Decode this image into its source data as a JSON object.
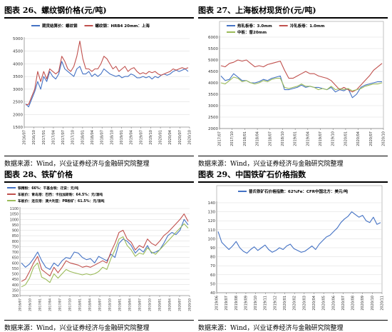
{
  "panels": [
    {
      "title": "图表 26、螺纹钢价格(元/吨)",
      "source": "数据来源：Wind，兴业证券经济与金融研究院整理"
    },
    {
      "title": "图表 27、上海板材现货价(元/吨)",
      "source": "数据来源：Wind，兴业证券经济与金融研究院整理"
    },
    {
      "title": "图表 28、铁矿价格",
      "source": "数据来源：Wind，兴业证券经济与金融研究院整理"
    },
    {
      "title": "图表 29、中国铁矿石价格指数",
      "source": "数据来源：Wind，兴业证券经济与金融研究院整理"
    }
  ],
  "chart_data": [
    {
      "type": "line",
      "title": "图表 26、螺纹钢价格(元/吨)",
      "ylim": [
        1500,
        5000
      ],
      "yticks": [
        "1500",
        "2000",
        "2500",
        "3000",
        "3500",
        "4000",
        "4500",
        "5000"
      ],
      "xticks": [
        "2016/07",
        "2016/10",
        "2017/01",
        "2017/04",
        "2017/07",
        "2017/10",
        "2018/01",
        "2018/04",
        "2018/07",
        "2018/10",
        "2019/01",
        "2019/04",
        "2019/07",
        "2019/10",
        "2020/01",
        "2020/04",
        "2020/07",
        "2020/10"
      ],
      "legend": [
        "期货结算价：螺纹钢",
        "螺纹钢：HRB4 20mm：上海"
      ],
      "colors": [
        "#4472C4",
        "#C0504D"
      ],
      "series": [
        {
          "name": "期货结算价：螺纹钢",
          "values": [
            2420,
            2300,
            2600,
            2900,
            3300,
            3000,
            3500,
            3300,
            3700,
            3500,
            3400,
            3600,
            4100,
            3800,
            3700,
            3600,
            3500,
            3800,
            3900,
            3600,
            3600,
            3700,
            3500,
            3600,
            3500,
            3600,
            3800,
            3700,
            3600,
            3550,
            3500,
            3550,
            3450,
            3500,
            3500,
            3600,
            3550,
            3450,
            3450,
            3500,
            3450,
            3500,
            3400,
            3500,
            3450,
            3550,
            3600,
            3550,
            3600,
            3700,
            3750,
            3700,
            3750,
            3800,
            3700
          ]
        },
        {
          "name": "螺纹钢：HRB4 20mm：上海",
          "values": [
            2380,
            2400,
            2700,
            3000,
            3700,
            3300,
            3700,
            3400,
            3800,
            3700,
            3600,
            3700,
            4300,
            4100,
            3800,
            3700,
            3900,
            4300,
            4900,
            4200,
            3800,
            3800,
            3700,
            3800,
            3800,
            4000,
            4300,
            4200,
            4000,
            3800,
            3900,
            3700,
            3800,
            3900,
            3700,
            3800,
            3850,
            3700,
            3600,
            3650,
            3600,
            3700,
            3650,
            3700,
            3600,
            3550,
            3600,
            3650,
            3700,
            3800,
            3750,
            3800,
            3850,
            3800,
            3850
          ]
        }
      ]
    },
    {
      "type": "line",
      "title": "图表 27、上海板材现货价(元/吨)",
      "ylim": [
        2000,
        6000
      ],
      "yticks": [
        "2000",
        "2500",
        "3000",
        "3500",
        "4000",
        "4500",
        "5000",
        "5500",
        "6000"
      ],
      "xticks": [
        "2017/07",
        "2017/10",
        "2018/01",
        "2018/04",
        "2018/07",
        "2018/10",
        "2019/01",
        "2019/04",
        "2019/07",
        "2019/10",
        "2020/01",
        "2020/04",
        "2020/07",
        "2020/10"
      ],
      "legend": [
        "热轧板卷：3.0mm",
        "冷轧板卷：1.0mm",
        "中板：普20mm"
      ],
      "colors": [
        "#4472C4",
        "#C0504D",
        "#9BBB59"
      ],
      "series": [
        {
          "name": "热轧板卷：3.0mm",
          "values": [
            4300,
            4100,
            4150,
            4400,
            4250,
            4100,
            4100,
            4000,
            4000,
            4050,
            4150,
            4100,
            4200,
            4250,
            4300,
            3700,
            3700,
            3750,
            3800,
            3900,
            3800,
            3850,
            3800,
            3800,
            3750,
            3700,
            3800,
            3600,
            3700,
            3650,
            3750,
            3350,
            3500,
            3800,
            3900,
            3950,
            4000,
            4050,
            4050
          ]
        },
        {
          "name": "冷轧板卷：1.0mm",
          "values": [
            4750,
            4700,
            4850,
            4900,
            5000,
            4950,
            5000,
            4850,
            4700,
            4750,
            4700,
            4800,
            4850,
            4900,
            4950,
            4550,
            4200,
            4200,
            4300,
            4400,
            4500,
            4400,
            4400,
            4300,
            4250,
            4200,
            4100,
            3900,
            3700,
            3800,
            3700,
            3600,
            3700,
            3900,
            4100,
            4300,
            4550,
            4700,
            4850
          ]
        },
        {
          "name": "中板：普20mm",
          "values": [
            4000,
            3950,
            4100,
            4250,
            4200,
            4050,
            4100,
            4000,
            3950,
            4000,
            4100,
            4050,
            4150,
            4200,
            4200,
            3800,
            3750,
            3800,
            3850,
            3950,
            3850,
            3850,
            3800,
            3700,
            3750,
            3700,
            3850,
            3700,
            3750,
            3700,
            3750,
            3650,
            3700,
            3750,
            3850,
            3900,
            3950,
            3950,
            4000
          ]
        }
      ]
    },
    {
      "type": "line",
      "title": "图表 28、铁矿价格",
      "ylim": [
        300,
        1100
      ],
      "yticks": [
        "300",
        "350",
        "400",
        "450",
        "500",
        "550",
        "600",
        "650",
        "700",
        "750",
        "800",
        "850",
        "900",
        "950",
        "1000",
        "1050",
        "1100"
      ],
      "xticks": [
        "2016/07",
        "2016/10",
        "2017/01",
        "2017/04",
        "2017/07",
        "2017/10",
        "2018/01",
        "2018/04",
        "2018/07",
        "2018/10",
        "2019/01",
        "2019/04",
        "2019/07",
        "2019/10",
        "2020/01",
        "2020/04",
        "2020/07",
        "2020/10"
      ],
      "legend": [
        "铁精粉：66%：干基含税：迁安：元/吨",
        "车板价：青岛港：巴西：卡拉加斯粉：64.5%：元/湿吨",
        "车板价：连云港：澳大利亚：PB粉矿：61.5%：元/湿吨"
      ],
      "colors": [
        "#4472C4",
        "#C0504D",
        "#9BBB59"
      ],
      "series": [
        {
          "name": "铁精粉：66%：干基含税：迁安：元/吨",
          "values": [
            600,
            560,
            590,
            640,
            700,
            620,
            560,
            540,
            600,
            570,
            620,
            650,
            640,
            700,
            690,
            650,
            630,
            640,
            600,
            660,
            640,
            620,
            680,
            650,
            780,
            820,
            800,
            760,
            690,
            730,
            700,
            760,
            690,
            700,
            720,
            780,
            850,
            880,
            860,
            900,
            1000,
            950
          ]
        },
        {
          "name": "车板价：青岛港：巴西：卡拉加斯粉：64.5%：元/湿吨",
          "values": [
            430,
            450,
            520,
            600,
            660,
            540,
            510,
            480,
            560,
            510,
            560,
            620,
            600,
            590,
            580,
            560,
            570,
            560,
            580,
            600,
            620,
            600,
            700,
            780,
            880,
            900,
            820,
            790,
            720,
            760,
            740,
            820,
            780,
            760,
            800,
            850,
            880,
            920,
            960,
            1000,
            1050,
            980
          ]
        },
        {
          "name": "车板价：连云港：澳大利亚：PB粉矿：61.5%：元/湿吨",
          "values": [
            380,
            400,
            460,
            560,
            600,
            470,
            450,
            420,
            500,
            460,
            500,
            540,
            520,
            510,
            500,
            490,
            500,
            490,
            500,
            520,
            560,
            540,
            640,
            720,
            820,
            840,
            760,
            720,
            660,
            690,
            680,
            740,
            700,
            680,
            720,
            760,
            800,
            840,
            880,
            920,
            960,
            920
          ]
        }
      ]
    },
    {
      "type": "line",
      "title": "图表 29、中国铁矿石价格指数",
      "ylim": [
        40,
        140
      ],
      "yticks": [
        "40",
        "50",
        "60",
        "70",
        "80",
        "90",
        "100",
        "110",
        "120",
        "130",
        "140"
      ],
      "xticks": [
        "2019/06",
        "2019/07",
        "2019/08",
        "2019/09",
        "2019/10",
        "2019/11",
        "2019/12",
        "2020/01",
        "2020/02",
        "2020/03",
        "2020/04",
        "2020/05",
        "2020/06",
        "2020/07",
        "2020/08",
        "2020/09",
        "2020/10",
        "2020/11"
      ],
      "legend": [
        "普氏铁矿石价格指数：62%Fe：CFR中国北方：美元/吨"
      ],
      "colors": [
        "#4472C4"
      ],
      "series": [
        {
          "name": "普氏铁矿石价格指数：62%Fe：CFR中国北方：美元/吨",
          "values": [
            108,
            96,
            92,
            88,
            92,
            97,
            90,
            86,
            84,
            88,
            91,
            87,
            90,
            93,
            88,
            85,
            87,
            90,
            88,
            92,
            94,
            89,
            87,
            85,
            86,
            89,
            92,
            88,
            94,
            98,
            102,
            104,
            108,
            112,
            118,
            122,
            125,
            130,
            127,
            124,
            126,
            120,
            118,
            124,
            116,
            118
          ]
        }
      ]
    }
  ]
}
